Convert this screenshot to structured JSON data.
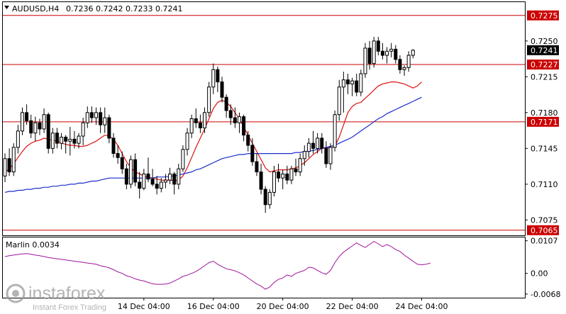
{
  "header": {
    "symbol_tf": "AUDUSD,H4",
    "ohlc": "0.7236 0.7242 0.7233 0.7241"
  },
  "colors": {
    "bull_candle": "#ffffff",
    "bear_candle": "#000000",
    "level_line": "#cc0000",
    "fast_ma": "#dd1111",
    "slow_ma": "#1a2fcc",
    "oscillator": "#a0149a",
    "price_tag": "#000000"
  },
  "watermark": {
    "brand": "instaforex",
    "tagline": "Instant Forex Trading"
  },
  "chart_data": [
    {
      "type": "candlestick",
      "title": "AUDUSD,H4",
      "xlabel": "",
      "ylabel": "",
      "ylim": [
        0.706,
        0.7288
      ],
      "grid": false,
      "x_ticks": [
        "14 Dec 04:00",
        "16 Dec 04:00",
        "20 Dec 04:00",
        "22 Dec 04:00",
        "24 Dec 04:00"
      ],
      "x_tick_index": [
        32,
        48,
        64,
        80,
        96
      ],
      "y_ticks": [
        0.725,
        0.7215,
        0.718,
        0.7145,
        0.711,
        0.7075
      ],
      "current_price": 0.7241,
      "levels": [
        0.7275,
        0.7227,
        0.7171,
        0.7065
      ],
      "candles": [
        [
          0.7118,
          0.714,
          0.7112,
          0.7135
        ],
        [
          0.7135,
          0.7145,
          0.7118,
          0.7122
        ],
        [
          0.7122,
          0.715,
          0.7118,
          0.7146
        ],
        [
          0.7146,
          0.7168,
          0.714,
          0.7162
        ],
        [
          0.7162,
          0.7185,
          0.7158,
          0.718
        ],
        [
          0.718,
          0.7188,
          0.7168,
          0.7172
        ],
        [
          0.7172,
          0.7178,
          0.7155,
          0.716
        ],
        [
          0.716,
          0.7176,
          0.7152,
          0.717
        ],
        [
          0.717,
          0.7174,
          0.7158,
          0.7164
        ],
        [
          0.7164,
          0.7184,
          0.716,
          0.7178
        ],
        [
          0.7178,
          0.718,
          0.714,
          0.7145
        ],
        [
          0.7145,
          0.7165,
          0.714,
          0.716
        ],
        [
          0.716,
          0.7165,
          0.7145,
          0.715
        ],
        [
          0.715,
          0.716,
          0.7144,
          0.7156
        ],
        [
          0.7156,
          0.7158,
          0.714,
          0.7152
        ],
        [
          0.7152,
          0.7166,
          0.7138,
          0.7154
        ],
        [
          0.7154,
          0.7162,
          0.7145,
          0.715
        ],
        [
          0.715,
          0.716,
          0.7145,
          0.7157
        ],
        [
          0.7157,
          0.7175,
          0.7148,
          0.717
        ],
        [
          0.717,
          0.7186,
          0.7165,
          0.718
        ],
        [
          0.718,
          0.7186,
          0.717,
          0.7175
        ],
        [
          0.7175,
          0.7185,
          0.7168,
          0.718
        ],
        [
          0.718,
          0.7185,
          0.716,
          0.7168
        ],
        [
          0.7168,
          0.7185,
          0.716,
          0.7175
        ],
        [
          0.7175,
          0.7178,
          0.715,
          0.7155
        ],
        [
          0.7155,
          0.716,
          0.7136,
          0.714
        ],
        [
          0.714,
          0.7148,
          0.713,
          0.7136
        ],
        [
          0.7136,
          0.7142,
          0.712,
          0.7125
        ],
        [
          0.7125,
          0.713,
          0.7105,
          0.711
        ],
        [
          0.711,
          0.7138,
          0.7106,
          0.7134
        ],
        [
          0.7134,
          0.714,
          0.7108,
          0.7112
        ],
        [
          0.7112,
          0.7122,
          0.7096,
          0.7106
        ],
        [
          0.7106,
          0.7125,
          0.7104,
          0.712
        ],
        [
          0.712,
          0.7136,
          0.7112,
          0.7115
        ],
        [
          0.7115,
          0.7125,
          0.7108,
          0.711
        ],
        [
          0.711,
          0.7118,
          0.71,
          0.7106
        ],
        [
          0.7106,
          0.7116,
          0.7102,
          0.7112
        ],
        [
          0.7112,
          0.712,
          0.7106,
          0.7114
        ],
        [
          0.7114,
          0.7126,
          0.711,
          0.712
        ],
        [
          0.712,
          0.7122,
          0.71,
          0.711
        ],
        [
          0.711,
          0.713,
          0.7105,
          0.7125
        ],
        [
          0.7125,
          0.7148,
          0.7122,
          0.7144
        ],
        [
          0.7144,
          0.7165,
          0.7138,
          0.716
        ],
        [
          0.716,
          0.7178,
          0.7155,
          0.7174
        ],
        [
          0.7174,
          0.7184,
          0.7165,
          0.717
        ],
        [
          0.717,
          0.7178,
          0.716,
          0.7165
        ],
        [
          0.7165,
          0.7185,
          0.716,
          0.718
        ],
        [
          0.718,
          0.721,
          0.7176,
          0.7205
        ],
        [
          0.7205,
          0.7228,
          0.7198,
          0.7222
        ],
        [
          0.7222,
          0.7225,
          0.72,
          0.721
        ],
        [
          0.721,
          0.7215,
          0.719,
          0.7195
        ],
        [
          0.7195,
          0.7198,
          0.7175,
          0.7182
        ],
        [
          0.7182,
          0.7188,
          0.7168,
          0.7175
        ],
        [
          0.7175,
          0.7185,
          0.7165,
          0.717
        ],
        [
          0.717,
          0.718,
          0.716,
          0.7176
        ],
        [
          0.7176,
          0.7178,
          0.7152,
          0.7158
        ],
        [
          0.7158,
          0.7162,
          0.7142,
          0.7148
        ],
        [
          0.7148,
          0.7155,
          0.7128,
          0.7132
        ],
        [
          0.7132,
          0.714,
          0.7118,
          0.7122
        ],
        [
          0.7122,
          0.713,
          0.71,
          0.7105
        ],
        [
          0.7105,
          0.7108,
          0.7082,
          0.709
        ],
        [
          0.709,
          0.7105,
          0.7086,
          0.7102
        ],
        [
          0.7102,
          0.7128,
          0.7098,
          0.7122
        ],
        [
          0.7122,
          0.713,
          0.7112,
          0.7116
        ],
        [
          0.7116,
          0.7124,
          0.7105,
          0.712
        ],
        [
          0.712,
          0.7128,
          0.711,
          0.7114
        ],
        [
          0.7114,
          0.7128,
          0.711,
          0.7125
        ],
        [
          0.7125,
          0.7135,
          0.7118,
          0.7122
        ],
        [
          0.7122,
          0.714,
          0.7118,
          0.7135
        ],
        [
          0.7135,
          0.7148,
          0.7128,
          0.7142
        ],
        [
          0.7142,
          0.7155,
          0.7136,
          0.715
        ],
        [
          0.715,
          0.7162,
          0.714,
          0.7145
        ],
        [
          0.7145,
          0.716,
          0.714,
          0.7155
        ],
        [
          0.7155,
          0.716,
          0.714,
          0.7145
        ],
        [
          0.7145,
          0.7152,
          0.7126,
          0.713
        ],
        [
          0.713,
          0.715,
          0.7124,
          0.7146
        ],
        [
          0.7146,
          0.7182,
          0.7142,
          0.7178
        ],
        [
          0.7178,
          0.7212,
          0.7172,
          0.7205
        ],
        [
          0.7205,
          0.722,
          0.718,
          0.7212
        ],
        [
          0.7212,
          0.7218,
          0.7198,
          0.7208
        ],
        [
          0.7208,
          0.7214,
          0.7196,
          0.7211
        ],
        [
          0.7211,
          0.7218,
          0.7196,
          0.72
        ],
        [
          0.72,
          0.7222,
          0.7196,
          0.7218
        ],
        [
          0.7218,
          0.7248,
          0.7214,
          0.7243
        ],
        [
          0.7243,
          0.725,
          0.7222,
          0.7228
        ],
        [
          0.7228,
          0.7254,
          0.7224,
          0.725
        ],
        [
          0.725,
          0.7254,
          0.7236,
          0.724
        ],
        [
          0.724,
          0.7248,
          0.7232,
          0.7236
        ],
        [
          0.7236,
          0.7244,
          0.7228,
          0.724
        ],
        [
          0.724,
          0.7248,
          0.7234,
          0.7242
        ],
        [
          0.7242,
          0.7246,
          0.7228,
          0.7232
        ],
        [
          0.7232,
          0.7236,
          0.7218,
          0.7222
        ],
        [
          0.7222,
          0.7226,
          0.7216,
          0.7224
        ],
        [
          0.7224,
          0.724,
          0.722,
          0.7236
        ],
        [
          0.7236,
          0.7242,
          0.7233,
          0.7241
        ]
      ],
      "series": [
        {
          "values": [
            0.7122,
            0.7125,
            0.713,
            0.7136,
            0.7142,
            0.7147,
            0.715,
            0.7152,
            0.7153,
            0.7155,
            0.7154,
            0.7153,
            0.7152,
            0.715,
            0.7149,
            0.7148,
            0.7148,
            0.7147,
            0.7147,
            0.7148,
            0.715,
            0.7152,
            0.7155,
            0.7158,
            0.7157,
            0.7154,
            0.7148,
            0.714,
            0.7132,
            0.7126,
            0.7122,
            0.712,
            0.7118,
            0.7117,
            0.7116,
            0.7115,
            0.7114,
            0.7114,
            0.7114,
            0.7113,
            0.7114,
            0.7118,
            0.7126,
            0.7136,
            0.7146,
            0.7155,
            0.7164,
            0.7174,
            0.7184,
            0.719,
            0.7192,
            0.719,
            0.7186,
            0.718,
            0.7174,
            0.7166,
            0.7158,
            0.715,
            0.7142,
            0.7134,
            0.7126,
            0.7122,
            0.7123,
            0.7124,
            0.7124,
            0.7124,
            0.7125,
            0.7126,
            0.7128,
            0.7131,
            0.7135,
            0.7139,
            0.7142,
            0.7145,
            0.7146,
            0.7145,
            0.7147,
            0.7156,
            0.7168,
            0.718,
            0.7186,
            0.7189,
            0.719,
            0.7194,
            0.7198,
            0.7202,
            0.7206,
            0.7208,
            0.7209,
            0.721,
            0.721,
            0.7209,
            0.7208,
            0.7206,
            0.7204,
            0.7206,
            0.721
          ]
        },
        {
          "values": [
            0.7102,
            0.7103,
            0.7103,
            0.7104,
            0.7104,
            0.7105,
            0.7105,
            0.7106,
            0.7106,
            0.7107,
            0.7107,
            0.7108,
            0.7108,
            0.7109,
            0.7109,
            0.711,
            0.711,
            0.7111,
            0.7111,
            0.7112,
            0.7113,
            0.7113,
            0.7114,
            0.7115,
            0.7116,
            0.7116,
            0.7116,
            0.7116,
            0.7116,
            0.7116,
            0.7116,
            0.7116,
            0.7116,
            0.7116,
            0.7116,
            0.7117,
            0.7117,
            0.7117,
            0.7118,
            0.7118,
            0.7119,
            0.712,
            0.7121,
            0.7122,
            0.7124,
            0.7125,
            0.7127,
            0.7129,
            0.7131,
            0.7133,
            0.7135,
            0.7136,
            0.7137,
            0.7138,
            0.7139,
            0.7139,
            0.714,
            0.714,
            0.714,
            0.714,
            0.714,
            0.714,
            0.714,
            0.714,
            0.714,
            0.714,
            0.714,
            0.7141,
            0.7141,
            0.7142,
            0.7142,
            0.7143,
            0.7144,
            0.7145,
            0.7146,
            0.7147,
            0.7148,
            0.715,
            0.7152,
            0.7154,
            0.7156,
            0.7159,
            0.7162,
            0.7165,
            0.7168,
            0.7171,
            0.7174,
            0.7176,
            0.7179,
            0.7181,
            0.7183,
            0.7185,
            0.7187,
            0.7189,
            0.7191,
            0.7193,
            0.7195
          ]
        }
      ]
    },
    {
      "type": "line",
      "title": "Marlin 0.0034",
      "ylim": [
        -0.008,
        0.0118
      ],
      "y_ticks": [
        0.0107,
        0.0,
        -0.0068
      ],
      "y_tick_labels": [
        "0.0107",
        "0.00",
        "-0.0068"
      ],
      "grid": false,
      "series": [
        {
          "name": "Marlin",
          "values": [
            0.0055,
            0.0058,
            0.006,
            0.0062,
            0.0064,
            0.0065,
            0.0063,
            0.006,
            0.0058,
            0.0055,
            0.0052,
            0.005,
            0.0048,
            0.0046,
            0.0044,
            0.0042,
            0.004,
            0.0038,
            0.0036,
            0.0034,
            0.0032,
            0.003,
            0.0025,
            0.0022,
            0.0018,
            0.0012,
            0.0005,
            0.0,
            -0.0008,
            -0.0012,
            -0.0018,
            -0.0022,
            -0.0025,
            -0.003,
            -0.0034,
            -0.0036,
            -0.0036,
            -0.0035,
            -0.0032,
            -0.0025,
            -0.0018,
            -0.001,
            -0.0006,
            0.0,
            0.0006,
            0.0015,
            0.0025,
            0.0035,
            0.004,
            0.003,
            0.0022,
            0.0015,
            0.0012,
            0.0008,
            0.0002,
            -0.0005,
            -0.0015,
            -0.0025,
            -0.0035,
            -0.0042,
            -0.0052,
            -0.0045,
            -0.003,
            -0.002,
            -0.0015,
            -0.0005,
            -0.001,
            0.0,
            0.0005,
            0.001,
            0.002,
            0.0018,
            0.001,
            0.0002,
            -0.0003,
            0.001,
            0.0035,
            0.0055,
            0.007,
            0.008,
            0.009,
            0.01,
            0.0092,
            0.0085,
            0.0095,
            0.0105,
            0.0097,
            0.0088,
            0.0095,
            0.0088,
            0.0078,
            0.0072,
            0.006,
            0.005,
            0.004,
            0.003,
            0.0028,
            0.003,
            0.0034
          ]
        }
      ]
    }
  ]
}
